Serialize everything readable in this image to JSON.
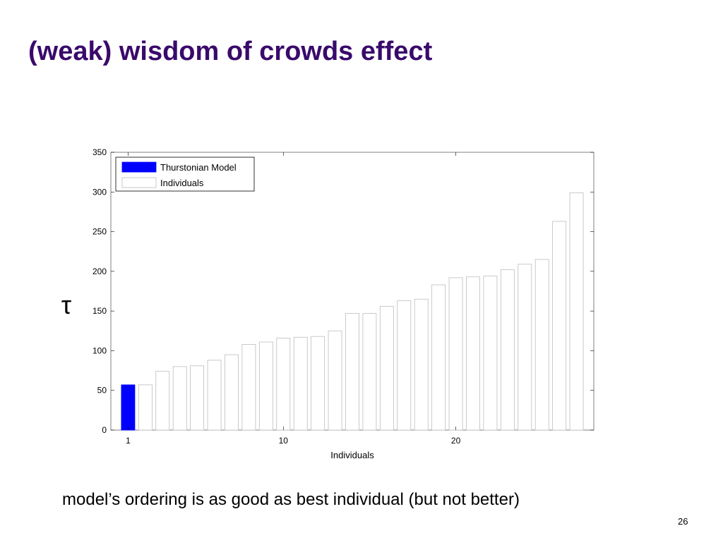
{
  "slide": {
    "title": "(weak) wisdom of crowds effect",
    "caption": "model’s ordering is as good as best individual (but not better)",
    "page_number": "26"
  },
  "chart_data": {
    "type": "bar",
    "xlabel": "Individuals",
    "ylabel": "τ",
    "ylim": [
      0,
      350
    ],
    "yticks": [
      0,
      50,
      100,
      150,
      200,
      250,
      300,
      350
    ],
    "xticks": [
      1,
      10,
      20
    ],
    "xlim": [
      0,
      28
    ],
    "grid": false,
    "legend_position": "top-left",
    "series": [
      {
        "name": "Thurstonian Model",
        "color": "#0000ff",
        "x": [
          1
        ],
        "values": [
          57
        ]
      },
      {
        "name": "Individuals",
        "color": "#ffffff",
        "x": [
          2,
          3,
          4,
          5,
          6,
          7,
          8,
          9,
          10,
          11,
          12,
          13,
          14,
          15,
          16,
          17,
          18,
          19,
          20,
          21,
          22,
          23,
          24,
          25,
          26,
          27
        ],
        "values": [
          57,
          74,
          80,
          81,
          88,
          95,
          108,
          111,
          116,
          117,
          118,
          125,
          147,
          147,
          156,
          163,
          165,
          183,
          192,
          193,
          194,
          202,
          209,
          215,
          263,
          299
        ]
      }
    ]
  }
}
